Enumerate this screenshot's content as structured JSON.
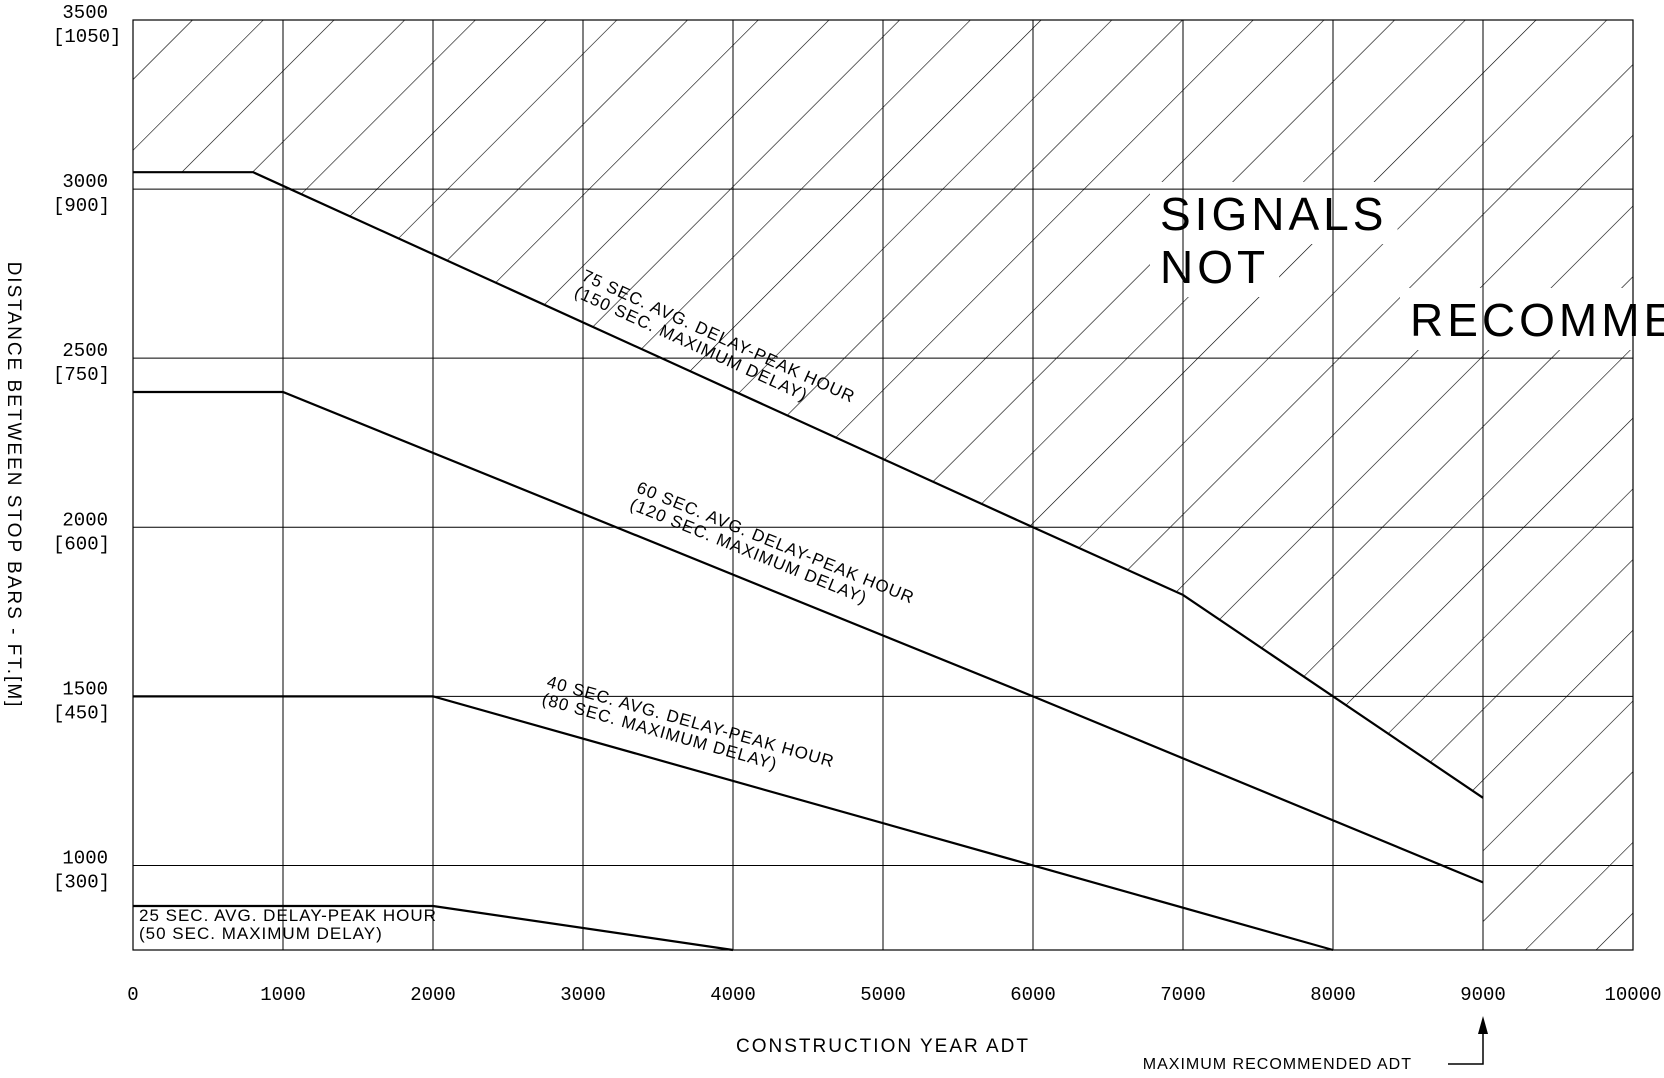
{
  "chart_data": {
    "type": "line",
    "xlabel": "CONSTRUCTION YEAR ADT",
    "ylabel": "DISTANCE BETWEEN STOP BARS - FT.[M]",
    "xlim": [
      0,
      10000
    ],
    "ylim": [
      750,
      3500
    ],
    "x_ticks": [
      {
        "value": 0,
        "label": "0"
      },
      {
        "value": 1000,
        "label": "1000"
      },
      {
        "value": 2000,
        "label": "2000"
      },
      {
        "value": 3000,
        "label": "3000"
      },
      {
        "value": 4000,
        "label": "4000"
      },
      {
        "value": 5000,
        "label": "5000"
      },
      {
        "value": 6000,
        "label": "6000"
      },
      {
        "value": 7000,
        "label": "7000"
      },
      {
        "value": 8000,
        "label": "8000"
      },
      {
        "value": 9000,
        "label": "9000"
      },
      {
        "value": 10000,
        "label": "10000"
      }
    ],
    "y_ticks": [
      {
        "value": 1000,
        "label": "1000",
        "sublabel": "[300]"
      },
      {
        "value": 1500,
        "label": "1500",
        "sublabel": "[450]"
      },
      {
        "value": 2000,
        "label": "2000",
        "sublabel": "[600]"
      },
      {
        "value": 2500,
        "label": "2500",
        "sublabel": "[750]"
      },
      {
        "value": 3000,
        "label": "3000",
        "sublabel": "[900]"
      },
      {
        "value": 3500,
        "label": "3500",
        "sublabel": "[1050]"
      }
    ],
    "grid": true,
    "series": [
      {
        "name": "25 SEC. AVG. DELAY-PEAK HOUR (50 SEC. MAXIMUM DELAY)",
        "label_lines": [
          "25 SEC. AVG. DELAY-PEAK HOUR",
          "(50 SEC. MAXIMUM DELAY)"
        ],
        "points": [
          [
            0,
            880
          ],
          [
            2000,
            880
          ],
          [
            4000,
            750
          ]
        ]
      },
      {
        "name": "40 SEC. AVG. DELAY-PEAK HOUR (80 SEC. MAXIMUM DELAY)",
        "label_lines": [
          "40 SEC. AVG. DELAY-PEAK HOUR",
          "(80 SEC. MAXIMUM DELAY)"
        ],
        "points": [
          [
            0,
            1500
          ],
          [
            2000,
            1500
          ],
          [
            6000,
            1000
          ],
          [
            8000,
            750
          ]
        ]
      },
      {
        "name": "60 SEC. AVG. DELAY-PEAK HOUR (120 SEC. MAXIMUM DELAY)",
        "label_lines": [
          "60 SEC. AVG. DELAY-PEAK HOUR",
          "(120 SEC. MAXIMUM DELAY)"
        ],
        "points": [
          [
            0,
            2400
          ],
          [
            1000,
            2400
          ],
          [
            6000,
            1500
          ],
          [
            9000,
            950
          ]
        ]
      },
      {
        "name": "75 SEC. AVG. DELAY-PEAK HOUR (150 SEC. MAXIMUM DELAY)",
        "label_lines": [
          "75 SEC. AVG. DELAY-PEAK HOUR",
          "(150 SEC. MAXIMUM DELAY)"
        ],
        "points": [
          [
            0,
            3050
          ],
          [
            800,
            3050
          ],
          [
            6000,
            2000
          ],
          [
            7000,
            1800
          ],
          [
            9000,
            1200
          ]
        ]
      }
    ],
    "region_label_lines": [
      "SIGNALS",
      "NOT",
      "RECOMMENDED"
    ],
    "annotation": {
      "text": "MAXIMUM RECOMMENDED ADT",
      "x": 9000
    }
  }
}
